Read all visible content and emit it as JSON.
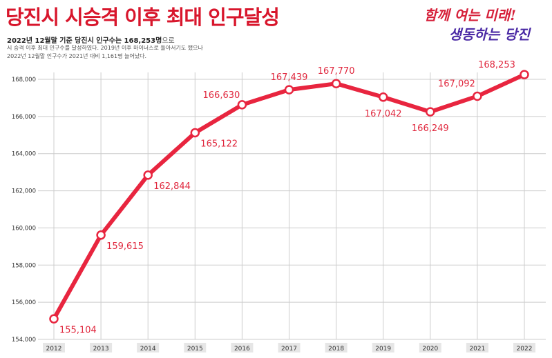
{
  "header": {
    "title": "당진시 시승격 이후 최대 인구달성",
    "subtitle_prefix": "2022년 12월말 기준 당진시 인구수는 168,253명",
    "subtitle_suffix": "으로",
    "desc_line1": "시 승격 이후 최대 인구수를 달성하였다. 2019년 이후 마이너스로 돌아서기도 했으나",
    "desc_line2": "2022년 12월말 인구수가 2021년 대비 1,161명 늘어났다."
  },
  "slogan": {
    "line1": "함께 여는 미래!",
    "line2": "생동하는 당진"
  },
  "colors": {
    "accent": "#e8253f",
    "title": "#d8162c",
    "grid": "#cccccc",
    "label": "#e0283e"
  },
  "chart_data": {
    "type": "line",
    "title": "당진시 시승격 이후 최대 인구달성",
    "xlabel": "",
    "ylabel": "",
    "categories": [
      "2012",
      "2013",
      "2014",
      "2015",
      "2016",
      "2017",
      "2018",
      "2019",
      "2020",
      "2021",
      "2022"
    ],
    "series": [
      {
        "name": "인구수",
        "values": [
          155104,
          159615,
          162844,
          165122,
          166630,
          167439,
          167770,
          167042,
          166249,
          167092,
          168253
        ],
        "labels": [
          "155,104",
          "159,615",
          "162,844",
          "165,122",
          "166,630",
          "167,439",
          "167,770",
          "167,042",
          "166,249",
          "167,092",
          "168,253"
        ]
      }
    ],
    "ylim": [
      154000,
      168000
    ],
    "yticks": [
      154000,
      156000,
      158000,
      160000,
      162000,
      164000,
      166000,
      168000
    ],
    "ytick_labels": [
      "154,000",
      "156,000",
      "158,000",
      "160,000",
      "162,000",
      "164,000",
      "166,000",
      "168,000"
    ],
    "grid": true
  }
}
